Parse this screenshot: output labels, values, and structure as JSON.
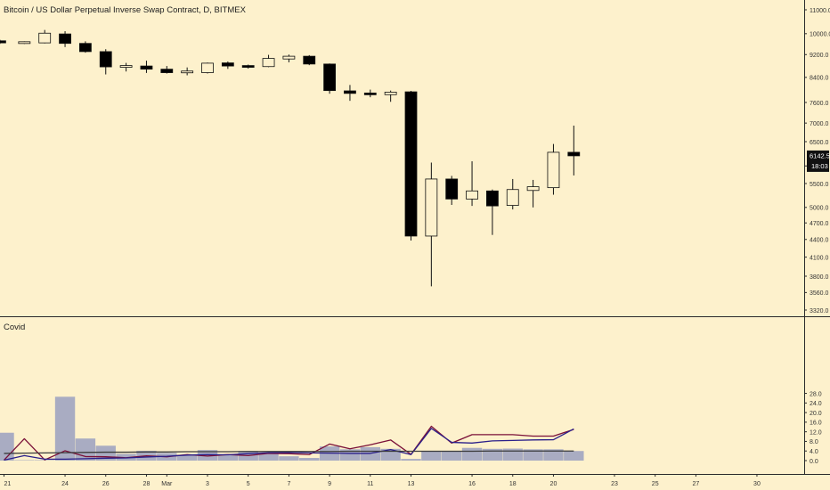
{
  "chart_data": {
    "type": "candlestick",
    "title": "Bitcoin / US Dollar Perpetual Inverse Swap Contract, D, BITMEX",
    "price_axis": {
      "ticks": [
        "11000.0",
        "10000.0",
        "9200.0",
        "8400.0",
        "7600.0",
        "7000.0",
        "6500.0",
        "5900.0",
        "5500.0",
        "5000.0",
        "4700.0",
        "4400.0",
        "4100.0",
        "3800.0",
        "3560.0",
        "3320.0"
      ],
      "log_scale": true,
      "ylim": [
        3250,
        11300
      ]
    },
    "last_price": {
      "value": "6142.5",
      "countdown": "18:03",
      "color": "#111111"
    },
    "x_axis": {
      "labels": [
        {
          "text": "21",
          "day": 0
        },
        {
          "text": "24",
          "day": 3
        },
        {
          "text": "26",
          "day": 5
        },
        {
          "text": "28",
          "day": 7
        },
        {
          "text": "Mar",
          "day": 8
        },
        {
          "text": "3",
          "day": 10
        },
        {
          "text": "5",
          "day": 12
        },
        {
          "text": "7",
          "day": 14
        },
        {
          "text": "9",
          "day": 16
        },
        {
          "text": "11",
          "day": 18
        },
        {
          "text": "13",
          "day": 20
        },
        {
          "text": "16",
          "day": 23
        },
        {
          "text": "18",
          "day": 25
        },
        {
          "text": "20",
          "day": 27
        },
        {
          "text": "23",
          "day": 30
        },
        {
          "text": "25",
          "day": 32
        },
        {
          "text": "27",
          "day": 34
        },
        {
          "text": "30",
          "day": 37
        }
      ]
    },
    "candles": [
      {
        "day": -0.2,
        "open": 9720,
        "high": 9760,
        "low": 9600,
        "close": 9640
      },
      {
        "day": 1,
        "open": 9630,
        "high": 9700,
        "low": 9600,
        "close": 9670
      },
      {
        "day": 2,
        "open": 9640,
        "high": 10150,
        "low": 9620,
        "close": 10020
      },
      {
        "day": 3,
        "open": 9990,
        "high": 10100,
        "low": 9480,
        "close": 9620
      },
      {
        "day": 4,
        "open": 9620,
        "high": 9700,
        "low": 9270,
        "close": 9310
      },
      {
        "day": 5,
        "open": 9310,
        "high": 9400,
        "low": 8500,
        "close": 8760
      },
      {
        "day": 6,
        "open": 8760,
        "high": 8900,
        "low": 8600,
        "close": 8790
      },
      {
        "day": 7,
        "open": 8790,
        "high": 8980,
        "low": 8550,
        "close": 8680
      },
      {
        "day": 8,
        "open": 8680,
        "high": 8790,
        "low": 8530,
        "close": 8560
      },
      {
        "day": 9,
        "open": 8570,
        "high": 8740,
        "low": 8470,
        "close": 8600
      },
      {
        "day": 10,
        "open": 8560,
        "high": 8910,
        "low": 8530,
        "close": 8890
      },
      {
        "day": 11,
        "open": 8900,
        "high": 8950,
        "low": 8690,
        "close": 8790
      },
      {
        "day": 12,
        "open": 8790,
        "high": 8840,
        "low": 8700,
        "close": 8760
      },
      {
        "day": 13,
        "open": 8770,
        "high": 9190,
        "low": 8750,
        "close": 9060
      },
      {
        "day": 14,
        "open": 9040,
        "high": 9200,
        "low": 8920,
        "close": 9140
      },
      {
        "day": 15,
        "open": 9140,
        "high": 9180,
        "low": 8820,
        "close": 8860
      },
      {
        "day": 16,
        "open": 8860,
        "high": 8880,
        "low": 7870,
        "close": 7970
      },
      {
        "day": 17,
        "open": 7960,
        "high": 8150,
        "low": 7650,
        "close": 7880
      },
      {
        "day": 18,
        "open": 7880,
        "high": 8000,
        "low": 7760,
        "close": 7850
      },
      {
        "day": 19,
        "open": 7840,
        "high": 7970,
        "low": 7620,
        "close": 7920
      },
      {
        "day": 20,
        "open": 7930,
        "high": 7960,
        "low": 4380,
        "close": 4460
      },
      {
        "day": 21,
        "open": 4460,
        "high": 5980,
        "low": 3650,
        "close": 5600
      },
      {
        "day": 22,
        "open": 5600,
        "high": 5670,
        "low": 5050,
        "close": 5170
      },
      {
        "day": 23,
        "open": 5170,
        "high": 6010,
        "low": 5030,
        "close": 5340
      },
      {
        "day": 24,
        "open": 5340,
        "high": 5370,
        "low": 4480,
        "close": 5030
      },
      {
        "day": 25,
        "open": 5040,
        "high": 5600,
        "low": 4960,
        "close": 5370
      },
      {
        "day": 26,
        "open": 5350,
        "high": 5580,
        "low": 5000,
        "close": 5430
      },
      {
        "day": 27,
        "open": 5410,
        "high": 6440,
        "low": 5260,
        "close": 6230
      },
      {
        "day": 28,
        "open": 6230,
        "high": 6930,
        "low": 5680,
        "close": 6142.5
      }
    ],
    "indicator": {
      "title": "Covid",
      "ticks": [
        "28.0",
        "24.0",
        "20.0",
        "16.0",
        "12.0",
        "8.0",
        "4.0",
        "0.0"
      ],
      "ylim": [
        -1.6,
        29.5
      ],
      "bar_color": "#a9acc2",
      "bars": [
        {
          "day": 0,
          "value": 11.6
        },
        {
          "day": 1,
          "value": 0.2
        },
        {
          "day": 2,
          "value": 0.2
        },
        {
          "day": 3,
          "value": 26.6
        },
        {
          "day": 4,
          "value": 9.2
        },
        {
          "day": 5,
          "value": 6.2
        },
        {
          "day": 6,
          "value": 2.8
        },
        {
          "day": 7,
          "value": 4.1
        },
        {
          "day": 8,
          "value": 3.2
        },
        {
          "day": 9,
          "value": 2.2
        },
        {
          "day": 10,
          "value": 4.4
        },
        {
          "day": 11,
          "value": 2.6
        },
        {
          "day": 12,
          "value": 4.0
        },
        {
          "day": 13,
          "value": 3.0
        },
        {
          "day": 14,
          "value": 1.8
        },
        {
          "day": 15,
          "value": 1.1
        },
        {
          "day": 16,
          "value": 5.9
        },
        {
          "day": 17,
          "value": 4.7
        },
        {
          "day": 18,
          "value": 5.6
        },
        {
          "day": 19,
          "value": 4.9
        },
        {
          "day": 20,
          "value": 0.7
        },
        {
          "day": 21,
          "value": 3.8
        },
        {
          "day": 22,
          "value": 3.8
        },
        {
          "day": 23,
          "value": 5.3
        },
        {
          "day": 24,
          "value": 4.9
        },
        {
          "day": 25,
          "value": 5.0
        },
        {
          "day": 26,
          "value": 4.7
        },
        {
          "day": 27,
          "value": 4.7
        },
        {
          "day": 28,
          "value": 4.0
        }
      ],
      "series": [
        {
          "color": "#7a1038",
          "values": [
            0.2,
            9.1,
            0.3,
            4.1,
            1.7,
            1.6,
            1.2,
            2.0,
            1.6,
            2.5,
            1.9,
            2.5,
            2.1,
            3.0,
            2.9,
            2.5,
            6.9,
            4.9,
            6.6,
            8.6,
            2.6,
            14.3,
            7.3,
            10.8,
            10.8,
            10.8,
            10.2,
            10.2,
            13.0
          ]
        },
        {
          "color": "#2a1f8a",
          "values": [
            0.2,
            2.1,
            0.6,
            0.6,
            0.8,
            1.0,
            1.1,
            1.5,
            1.8,
            2.3,
            2.5,
            2.4,
            2.9,
            3.3,
            3.4,
            3.2,
            3.1,
            3.0,
            3.0,
            4.6,
            2.5,
            13.4,
            7.6,
            7.3,
            8.2,
            8.4,
            8.6,
            8.7,
            13.2
          ]
        },
        {
          "color": "#3b3b3b",
          "values": [
            3.0,
            3.1,
            3.2,
            3.3,
            3.4,
            3.5,
            3.5,
            3.6,
            3.6,
            3.7,
            3.7,
            3.7,
            3.8,
            3.8,
            3.8,
            3.8,
            3.8,
            3.9,
            3.9,
            3.9,
            3.9,
            3.9,
            3.9,
            3.9,
            4.0,
            4.0,
            4.0,
            4.0,
            4.0
          ]
        }
      ]
    }
  }
}
